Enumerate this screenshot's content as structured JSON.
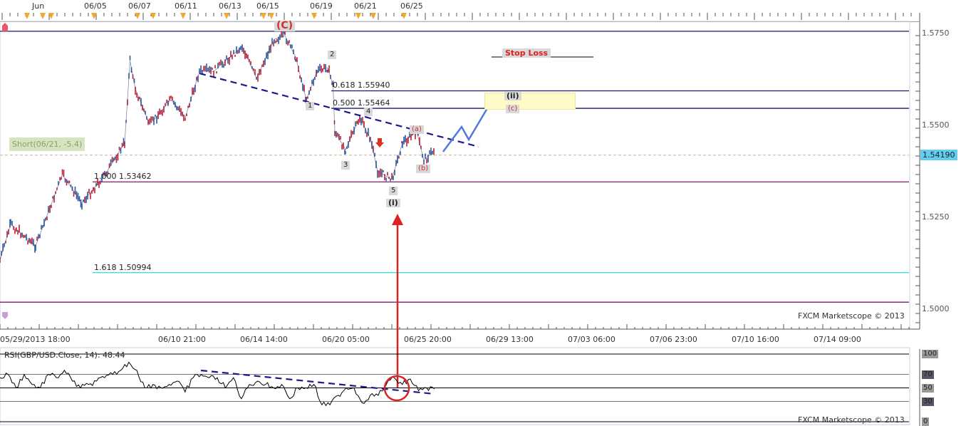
{
  "top_axis": {
    "labels": [
      "Jun",
      "06/05",
      "06/07",
      "06/11",
      "06/13",
      "06/15",
      "06/19",
      "06/21",
      "06/25"
    ]
  },
  "bottom_axis": {
    "labels": [
      "05/29/2013 18:00",
      "06/10 21:00",
      "06/14 14:00",
      "06/20 05:00",
      "06/25 20:00",
      "06/29 13:00",
      "07/03 06:00",
      "07/06 23:00",
      "07/10 16:00",
      "07/14 09:00"
    ]
  },
  "watermark": "FXCM Marketscope © 2013",
  "position_label": "Short(06/21, -5.4)",
  "stop_loss_label": "Stop Loss",
  "waves": {
    "C": "(C)",
    "w1": "1",
    "w2": "2",
    "w3": "3",
    "w4": "4",
    "w5": "5",
    "i": "(i)",
    "a": "(a)",
    "b": "(b)",
    "c": "(c)",
    "ii": "(ii)"
  },
  "colors": {
    "accent_line": "#1a1a6e",
    "fib_cyan": "#40e0d0",
    "fib_purple": "#7a2060",
    "bull": "#2a5aa0",
    "bear": "#c02030",
    "projection": "#5577dd",
    "annotation_red": "#dd2222",
    "current_price_bg": "#66ccee"
  },
  "chart_data": [
    {
      "type": "line",
      "symbol": "GBP/USD",
      "ylim": [
        1.4975,
        1.578
      ],
      "yticks": [
        "1.5750",
        "1.5500",
        "1.5250",
        "1.5000"
      ],
      "current_price": "1.54190",
      "points": [
        [
          "05/29 18:00",
          1.5134
        ],
        [
          "05/30 06:00",
          1.5231
        ],
        [
          "05/31 10:00",
          1.5172
        ],
        [
          "06/03 16:00",
          1.5366
        ],
        [
          "06/04 14:00",
          1.5289
        ],
        [
          "06/05 16:00",
          1.5366
        ],
        [
          "06/06 14:00",
          1.5453
        ],
        [
          "06/06 20:00",
          1.5676
        ],
        [
          "06/07 02:00",
          1.5599
        ],
        [
          "06/07 18:00",
          1.5502
        ],
        [
          "06/10 18:00",
          1.557
        ],
        [
          "06/11 10:00",
          1.5521
        ],
        [
          "06/12 02:00",
          1.5647
        ],
        [
          "06/12 18:00",
          1.5647
        ],
        [
          "06/14 02:00",
          1.5715
        ],
        [
          "06/14 18:00",
          1.5628
        ],
        [
          "06/17 14:00",
          1.5734
        ],
        [
          "06/18 02:00",
          1.5744
        ],
        [
          "06/18 14:00",
          1.5686
        ],
        [
          "06/19 02:00",
          1.557
        ],
        [
          "06/19 14:00",
          1.5647
        ],
        [
          "06/20 02:00",
          1.5657
        ],
        [
          "06/20 08:00",
          1.5609
        ],
        [
          "06/20 10:00",
          1.5483
        ],
        [
          "06/20 22:00",
          1.5434
        ],
        [
          "06/21 14:00",
          1.5521
        ],
        [
          "06/24 02:00",
          1.5463
        ],
        [
          "06/24 10:00",
          1.5376
        ],
        [
          "06/25 02:00",
          1.5353
        ],
        [
          "06/25 14:00",
          1.5453
        ],
        [
          "06/26 06:00",
          1.5483
        ],
        [
          "06/26 14:00",
          1.5405
        ],
        [
          "06/27 02:00",
          1.5434
        ]
      ],
      "levels": [
        {
          "label": "",
          "value": 1.5756
        },
        {
          "label": "0.618 1.55940",
          "value": 1.5594
        },
        {
          "label": "0.500 1.55464",
          "value": 1.55464
        },
        {
          "label": "1.000 1.53462",
          "value": 1.53462
        },
        {
          "label": "1.618 1.50994",
          "value": 1.50994
        },
        {
          "label": "",
          "value": 1.5019
        }
      ]
    },
    {
      "type": "line",
      "title": "RSI(GBP/USD.Close, 14): 48.44",
      "ylim": [
        0,
        100
      ],
      "yticks": [
        "100",
        "70",
        "50",
        "30",
        "0"
      ],
      "start": "05/29 18:00",
      "end": "06/27 02:00",
      "values": [
        65,
        70,
        50,
        70,
        55,
        50,
        70,
        65,
        76,
        60,
        50,
        55,
        60,
        65,
        70,
        76,
        88,
        76,
        50,
        55,
        50,
        55,
        60,
        44,
        65,
        70,
        65,
        65,
        50,
        65,
        34,
        55,
        60,
        55,
        50,
        55,
        34,
        50,
        50,
        55,
        25,
        25,
        39,
        50,
        50,
        28,
        39,
        39,
        55,
        65,
        55,
        63,
        46,
        50,
        48.44
      ]
    }
  ]
}
